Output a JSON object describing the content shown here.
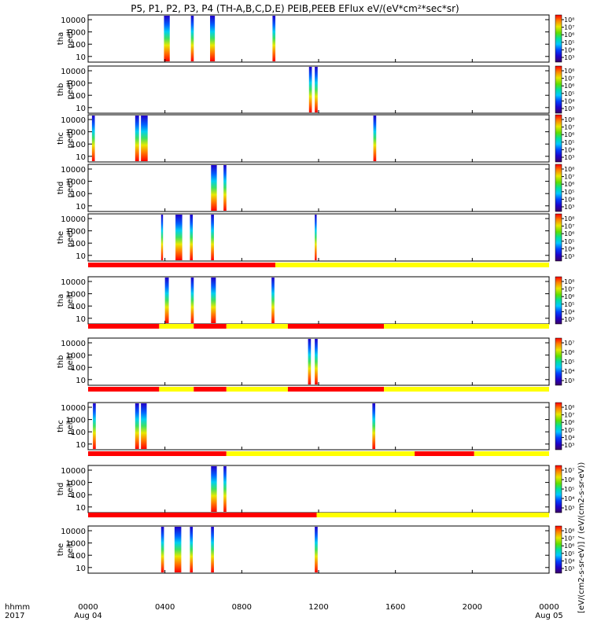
{
  "chart_data": {
    "type": "heatmap",
    "title": "P5, P1, P2, P3, P4 (TH-A,B,C,D,E) PEIB,PEEB EFlux eV/(eV*cm²*sec*sr)",
    "colorbar_label": "[eV/(cm2-s-sr-eV)] / (eV/(cm2-s-sr-eV))",
    "x_axis": {
      "label_top": "hhmm",
      "label_bottom": "2017",
      "ticks": [
        "0000",
        "0400",
        "0800",
        "1200",
        "1600",
        "2000",
        "0000"
      ],
      "tick_hours": [
        0,
        4,
        8,
        12,
        16,
        20,
        24
      ],
      "date_start": "Aug 04",
      "date_end": "Aug 05"
    },
    "y_scale": "log",
    "y_ticks": [
      "10000",
      "1000",
      "100",
      "10"
    ],
    "colormap": [
      "#3c0064",
      "#2000c8",
      "#0040ff",
      "#00c8ff",
      "#00e0a0",
      "#60e000",
      "#e8e800",
      "#ff8000",
      "#ff0000"
    ],
    "panels": [
      {
        "label": "tha",
        "label2": "peeb",
        "cb_ticks": [
          "10⁸",
          "10⁷",
          "10⁶",
          "10⁵",
          "10⁴",
          "10³"
        ],
        "bursts": [
          {
            "t0": 3.95,
            "t1": 4.25
          },
          {
            "t0": 5.35,
            "t1": 5.5
          },
          {
            "t0": 6.35,
            "t1": 6.6
          },
          {
            "t0": 9.6,
            "t1": 9.75
          }
        ]
      },
      {
        "label": "thb",
        "label2": "peeb",
        "cb_ticks": [
          "10⁸",
          "10⁷",
          "10⁶",
          "10⁵",
          "10⁴",
          "10³"
        ],
        "bursts": [
          {
            "t0": 11.5,
            "t1": 11.65
          },
          {
            "t0": 11.8,
            "t1": 11.95
          }
        ]
      },
      {
        "label": "thc",
        "label2": "peeb",
        "cb_ticks": [
          "10⁸",
          "10⁷",
          "10⁶",
          "10⁵",
          "10⁴",
          "10³"
        ],
        "bursts": [
          {
            "t0": 0.2,
            "t1": 0.35
          },
          {
            "t0": 2.45,
            "t1": 2.65
          },
          {
            "t0": 2.75,
            "t1": 3.1
          },
          {
            "t0": 14.85,
            "t1": 15.0
          }
        ]
      },
      {
        "label": "thd",
        "label2": "peeb",
        "cb_ticks": [
          "10⁸",
          "10⁷",
          "10⁶",
          "10⁵",
          "10⁴",
          "10³"
        ],
        "bursts": [
          {
            "t0": 6.4,
            "t1": 6.7
          },
          {
            "t0": 7.05,
            "t1": 7.2
          }
        ]
      },
      {
        "label": "the",
        "label2": "peeb",
        "cb_ticks": [
          "10⁸",
          "10⁷",
          "10⁶",
          "10⁵",
          "10⁴",
          "10³"
        ],
        "bursts": [
          {
            "t0": 3.8,
            "t1": 3.9
          },
          {
            "t0": 4.55,
            "t1": 4.9
          },
          {
            "t0": 5.3,
            "t1": 5.45
          },
          {
            "t0": 6.4,
            "t1": 6.55
          },
          {
            "t0": 11.8,
            "t1": 11.9
          }
        ]
      },
      {
        "label": "tha",
        "label2": "peib",
        "cb_ticks": [
          "10⁸",
          "10⁷",
          "10⁶",
          "10⁵",
          "10⁴",
          "10³"
        ],
        "bursts": [
          {
            "t0": 4.0,
            "t1": 4.2
          },
          {
            "t0": 5.35,
            "t1": 5.5
          },
          {
            "t0": 6.4,
            "t1": 6.65
          },
          {
            "t0": 9.55,
            "t1": 9.7
          }
        ]
      },
      {
        "label": "thb",
        "label2": "peib",
        "cb_ticks": [
          "10⁷",
          "10⁶",
          "10⁵",
          "10⁴",
          "10³"
        ],
        "bursts": [
          {
            "t0": 11.45,
            "t1": 11.6
          },
          {
            "t0": 11.8,
            "t1": 11.95
          }
        ]
      },
      {
        "label": "thc",
        "label2": "peib",
        "cb_ticks": [
          "10⁸",
          "10⁷",
          "10⁶",
          "10⁵",
          "10⁴",
          "10³"
        ],
        "bursts": [
          {
            "t0": 0.25,
            "t1": 0.4
          },
          {
            "t0": 2.45,
            "t1": 2.65
          },
          {
            "t0": 2.75,
            "t1": 3.05
          },
          {
            "t0": 14.8,
            "t1": 14.95
          }
        ]
      },
      {
        "label": "thd",
        "label2": "peib",
        "cb_ticks": [
          "10⁷",
          "10⁶",
          "10⁵",
          "10⁴",
          "10³"
        ],
        "bursts": [
          {
            "t0": 6.4,
            "t1": 6.7
          },
          {
            "t0": 7.05,
            "t1": 7.2
          }
        ]
      },
      {
        "label": "the",
        "label2": "peib",
        "cb_ticks": [
          "10⁸",
          "10⁷",
          "10⁶",
          "10⁵",
          "10⁴",
          "10³"
        ],
        "bursts": [
          {
            "t0": 3.8,
            "t1": 3.95
          },
          {
            "t0": 4.5,
            "t1": 4.85
          },
          {
            "t0": 5.3,
            "t1": 5.45
          },
          {
            "t0": 6.4,
            "t1": 6.55
          },
          {
            "t0": 11.8,
            "t1": 11.95
          }
        ]
      }
    ],
    "mode_bars": [
      {
        "after_panel": 4,
        "segments": [
          {
            "t0": 0,
            "t1": 9.75,
            "color": "red"
          },
          {
            "t0": 9.75,
            "t1": 24,
            "color": "yellow"
          }
        ]
      },
      {
        "after_panel": 5,
        "segments": [
          {
            "t0": 0,
            "t1": 3.7,
            "color": "red"
          },
          {
            "t0": 3.7,
            "t1": 5.5,
            "color": "yellow"
          },
          {
            "t0": 5.5,
            "t1": 7.2,
            "color": "red"
          },
          {
            "t0": 7.2,
            "t1": 10.4,
            "color": "yellow"
          },
          {
            "t0": 10.4,
            "t1": 15.4,
            "color": "red"
          },
          {
            "t0": 15.4,
            "t1": 24,
            "color": "yellow"
          }
        ]
      },
      {
        "after_panel": 6,
        "segments": [
          {
            "t0": 0,
            "t1": 3.7,
            "color": "red"
          },
          {
            "t0": 3.7,
            "t1": 5.5,
            "color": "yellow"
          },
          {
            "t0": 5.5,
            "t1": 7.2,
            "color": "red"
          },
          {
            "t0": 7.2,
            "t1": 10.4,
            "color": "yellow"
          },
          {
            "t0": 10.4,
            "t1": 15.4,
            "color": "red"
          },
          {
            "t0": 15.4,
            "t1": 24,
            "color": "yellow"
          }
        ]
      },
      {
        "after_panel": 7,
        "segments": [
          {
            "t0": 0,
            "t1": 7.2,
            "color": "red"
          },
          {
            "t0": 7.2,
            "t1": 17.0,
            "color": "yellow"
          },
          {
            "t0": 17.0,
            "t1": 20.1,
            "color": "red"
          },
          {
            "t0": 20.1,
            "t1": 24,
            "color": "yellow"
          }
        ]
      },
      {
        "after_panel": 8,
        "segments": [
          {
            "t0": 0,
            "t1": 11.9,
            "color": "red"
          },
          {
            "t0": 11.9,
            "t1": 24,
            "color": "yellow"
          }
        ]
      }
    ]
  }
}
